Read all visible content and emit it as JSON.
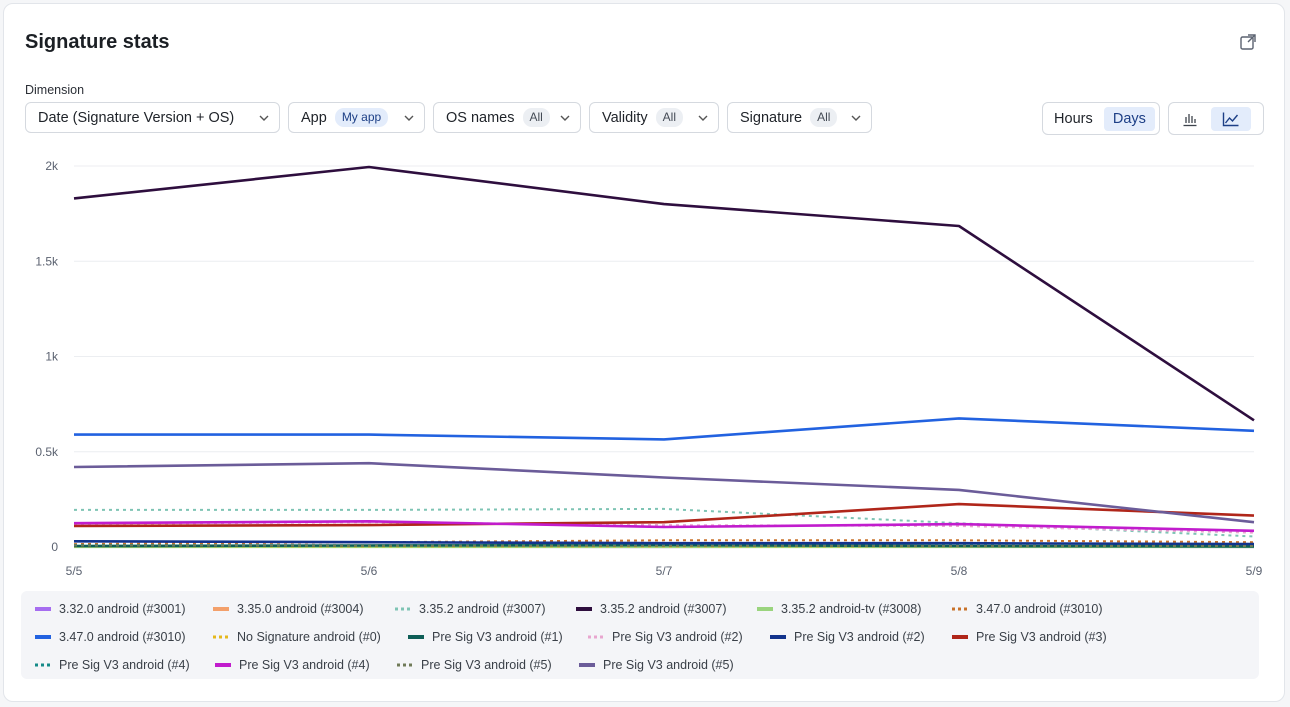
{
  "header": {
    "title": "Signature stats",
    "export_icon": "external-link-icon"
  },
  "filters": {
    "dimension_label": "Dimension",
    "dimension_value": "Date (Signature Version + OS)",
    "app_label": "App",
    "app_value": "My app",
    "os_label": "OS names",
    "os_value": "All",
    "validity_label": "Validity",
    "validity_value": "All",
    "signature_label": "Signature",
    "signature_value": "All"
  },
  "granularity": {
    "hours_label": "Hours",
    "days_label": "Days",
    "selected": "Days"
  },
  "chart_type_toggle": {
    "bar_icon": "bar-chart-icon",
    "line_icon": "line-chart-icon",
    "selected": "line"
  },
  "chart_data": {
    "type": "line",
    "categories": [
      "5/5",
      "5/6",
      "5/7",
      "5/8",
      "5/9"
    ],
    "y_ticks": [
      0,
      500,
      1000,
      1500,
      2000
    ],
    "y_tick_labels": [
      "0",
      "0.5k",
      "1k",
      "1.5k",
      "2k"
    ],
    "ylim": [
      0,
      2000
    ],
    "grid": true,
    "legend_position": "bottom",
    "series": [
      {
        "name": "3.32.0 android (#3001)",
        "color": "#a66df0",
        "dash": false,
        "values": [
          2,
          2,
          1,
          2,
          1
        ]
      },
      {
        "name": "3.35.0 android (#3004)",
        "color": "#f3a06b",
        "dash": false,
        "values": [
          3,
          3,
          2,
          3,
          2
        ]
      },
      {
        "name": "3.35.2 android (#3007)",
        "color": "#7ec4b4",
        "dash": true,
        "values": [
          195,
          195,
          200,
          125,
          55
        ]
      },
      {
        "name": "3.35.2 android (#3007)",
        "color": "#2e0e3e",
        "dash": false,
        "values": [
          1830,
          1995,
          1800,
          1685,
          665
        ]
      },
      {
        "name": "3.35.2 android-tv (#3008)",
        "color": "#9ad47e",
        "dash": false,
        "values": [
          1,
          1,
          1,
          1,
          1
        ]
      },
      {
        "name": "3.47.0 android (#3010)",
        "color": "#c9722a",
        "dash": true,
        "values": [
          15,
          25,
          35,
          35,
          25
        ]
      },
      {
        "name": "3.47.0 android (#3010)",
        "color": "#2262e0",
        "dash": false,
        "values": [
          590,
          590,
          565,
          675,
          610
        ]
      },
      {
        "name": "No Signature android (#0)",
        "color": "#e5b81c",
        "dash": true,
        "values": [
          3,
          3,
          3,
          3,
          3
        ]
      },
      {
        "name": "Pre Sig V3 android (#1)",
        "color": "#0e5e57",
        "dash": false,
        "values": [
          5,
          8,
          10,
          5,
          3
        ]
      },
      {
        "name": "Pre Sig V3 android (#2)",
        "color": "#e8a6cf",
        "dash": true,
        "values": [
          120,
          130,
          115,
          110,
          75
        ]
      },
      {
        "name": "Pre Sig V3 android (#2)",
        "color": "#12338c",
        "dash": false,
        "values": [
          30,
          25,
          20,
          20,
          15
        ]
      },
      {
        "name": "Pre Sig V3 android (#3)",
        "color": "#b0261a",
        "dash": false,
        "values": [
          110,
          115,
          130,
          225,
          165
        ]
      },
      {
        "name": "Pre Sig V3 android (#4)",
        "color": "#158a88",
        "dash": true,
        "values": [
          10,
          10,
          8,
          8,
          5
        ]
      },
      {
        "name": "Pre Sig V3 android (#4)",
        "color": "#c11ccd",
        "dash": false,
        "values": [
          125,
          135,
          105,
          120,
          85
        ]
      },
      {
        "name": "Pre Sig V3 android (#5)",
        "color": "#6f7a58",
        "dash": true,
        "values": [
          8,
          8,
          6,
          6,
          5
        ]
      },
      {
        "name": "Pre Sig V3 android (#5)",
        "color": "#6b5c99",
        "dash": false,
        "values": [
          420,
          440,
          365,
          300,
          130
        ]
      }
    ]
  }
}
